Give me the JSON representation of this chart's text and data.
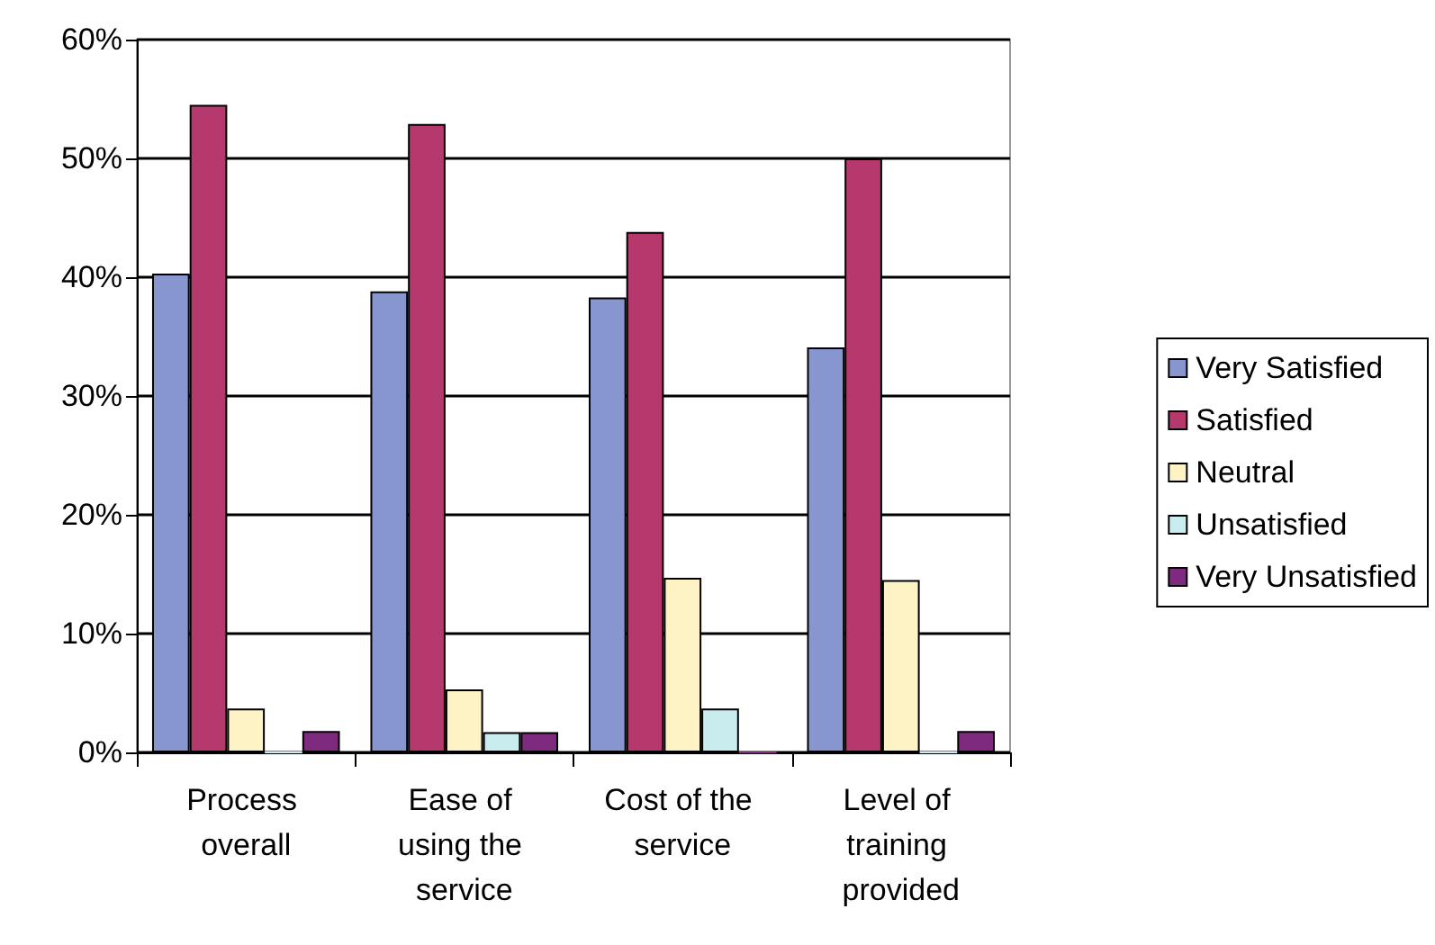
{
  "chart_data": {
    "type": "bar",
    "categories": [
      "Process overall",
      "Ease of using the service",
      "Cost of the service",
      "Level of training provided"
    ],
    "series": [
      {
        "name": "Very Satisfied",
        "color": "#8896d0",
        "values": [
          40.3,
          38.8,
          38.3,
          34.1
        ]
      },
      {
        "name": "Satisfied",
        "color": "#b5396d",
        "values": [
          54.5,
          52.9,
          43.8,
          50.0
        ]
      },
      {
        "name": "Neutral",
        "color": "#fdf3c4",
        "values": [
          3.7,
          5.3,
          14.7,
          14.5
        ]
      },
      {
        "name": "Unsatisfied",
        "color": "#c9ecef",
        "values": [
          0,
          1.7,
          3.7,
          0
        ]
      },
      {
        "name": "Very Unsatisfied",
        "color": "#7e2a7e",
        "values": [
          1.8,
          1.7,
          0,
          1.8
        ]
      }
    ],
    "ylim": [
      0,
      60
    ],
    "yticks": [
      {
        "value": 0,
        "label": "0%"
      },
      {
        "value": 10,
        "label": "10%"
      },
      {
        "value": 20,
        "label": "20%"
      },
      {
        "value": 30,
        "label": "30%"
      },
      {
        "value": 40,
        "label": "40%"
      },
      {
        "value": 50,
        "label": "50%"
      },
      {
        "value": 60,
        "label": "60%"
      }
    ],
    "grid": "y",
    "legend": "right"
  }
}
